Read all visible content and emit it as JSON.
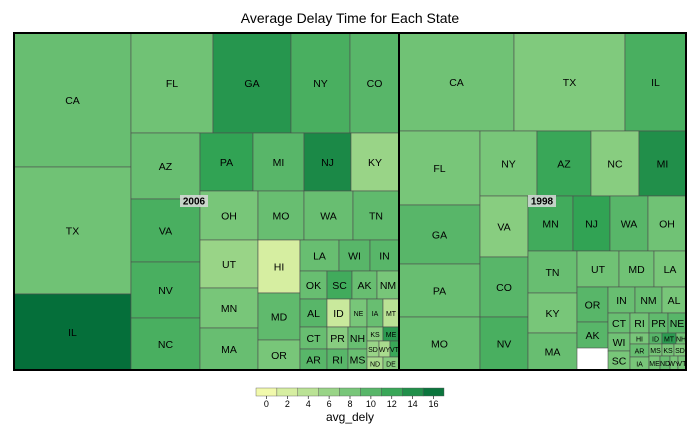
{
  "chart_data": {
    "type": "treemap",
    "title": "Average Delay Time for Each State",
    "color_variable": "avg_dely",
    "colorbar": {
      "ticks": [
        0,
        2,
        4,
        6,
        8,
        10,
        12,
        14,
        16
      ],
      "range": [
        -1,
        17
      ],
      "stops": [
        "#ffffb2",
        "#c2e699",
        "#78c679",
        "#31a354",
        "#006837"
      ]
    },
    "groups": [
      {
        "name": "2006",
        "cells": [
          {
            "label": "CA",
            "value": 9
          },
          {
            "label": "TX",
            "value": 8.5
          },
          {
            "label": "IL",
            "value": 16.5
          },
          {
            "label": "FL",
            "value": 8.5
          },
          {
            "label": "GA",
            "value": 13.5
          },
          {
            "label": "NY",
            "value": 11
          },
          {
            "label": "CO",
            "value": 10
          },
          {
            "label": "AZ",
            "value": 9
          },
          {
            "label": "PA",
            "value": 12.5
          },
          {
            "label": "MI",
            "value": 10
          },
          {
            "label": "NJ",
            "value": 14.5
          },
          {
            "label": "KY",
            "value": 6
          },
          {
            "label": "VA",
            "value": 11
          },
          {
            "label": "NV",
            "value": 11
          },
          {
            "label": "NC",
            "value": 11
          },
          {
            "label": "OH",
            "value": 8
          },
          {
            "label": "MO",
            "value": 9
          },
          {
            "label": "WA",
            "value": 9
          },
          {
            "label": "TN",
            "value": 9.5
          },
          {
            "label": "UT",
            "value": 6
          },
          {
            "label": "MN",
            "value": 8
          },
          {
            "label": "MA",
            "value": 9
          },
          {
            "label": "HI",
            "value": 2
          },
          {
            "label": "MD",
            "value": 9.5
          },
          {
            "label": "OR",
            "value": 8
          },
          {
            "label": "LA",
            "value": 9
          },
          {
            "label": "WI",
            "value": 10
          },
          {
            "label": "IN",
            "value": 10
          },
          {
            "label": "OK",
            "value": 9
          },
          {
            "label": "SC",
            "value": 11.5
          },
          {
            "label": "AK",
            "value": 9
          },
          {
            "label": "NM",
            "value": 8
          },
          {
            "label": "AL",
            "value": 10
          },
          {
            "label": "ID",
            "value": 3
          },
          {
            "label": "NE",
            "value": 8
          },
          {
            "label": "IA",
            "value": 9
          },
          {
            "label": "MT",
            "value": 4
          },
          {
            "label": "CT",
            "value": 9
          },
          {
            "label": "PR",
            "value": 7
          },
          {
            "label": "NH",
            "value": 9
          },
          {
            "label": "KS",
            "value": 7
          },
          {
            "label": "ME",
            "value": 13
          },
          {
            "label": "AR",
            "value": 10
          },
          {
            "label": "RI",
            "value": 10
          },
          {
            "label": "MS",
            "value": 9
          },
          {
            "label": "SD",
            "value": 6
          },
          {
            "label": "WY",
            "value": 5
          },
          {
            "label": "VT",
            "value": 12
          },
          {
            "label": "ND",
            "value": 5
          },
          {
            "label": "DE",
            "value": 7
          }
        ]
      },
      {
        "name": "1998",
        "cells": [
          {
            "label": "CA",
            "value": 8.5
          },
          {
            "label": "TX",
            "value": 7.5
          },
          {
            "label": "IL",
            "value": 11
          },
          {
            "label": "FL",
            "value": 8
          },
          {
            "label": "NY",
            "value": 8
          },
          {
            "label": "AZ",
            "value": 12
          },
          {
            "label": "NC",
            "value": 7
          },
          {
            "label": "MI",
            "value": 14
          },
          {
            "label": "GA",
            "value": 10
          },
          {
            "label": "VA",
            "value": 7
          },
          {
            "label": "MN",
            "value": 11.5
          },
          {
            "label": "NJ",
            "value": 12.5
          },
          {
            "label": "WA",
            "value": 10
          },
          {
            "label": "OH",
            "value": 8.5
          },
          {
            "label": "PA",
            "value": 9
          },
          {
            "label": "CO",
            "value": 10
          },
          {
            "label": "TN",
            "value": 9
          },
          {
            "label": "UT",
            "value": 8.5
          },
          {
            "label": "MD",
            "value": 8.5
          },
          {
            "label": "LA",
            "value": 8
          },
          {
            "label": "MO",
            "value": 9
          },
          {
            "label": "NV",
            "value": 11
          },
          {
            "label": "KY",
            "value": 8
          },
          {
            "label": "MA",
            "value": 9
          },
          {
            "label": "OR",
            "value": 10
          },
          {
            "label": "IN",
            "value": 9
          },
          {
            "label": "NM",
            "value": 9
          },
          {
            "label": "AL",
            "value": 8
          },
          {
            "label": "AK",
            "value": 10
          },
          {
            "label": "CT",
            "value": 9
          },
          {
            "label": "RI",
            "value": 8.5
          },
          {
            "label": "PR",
            "value": 9.5
          },
          {
            "label": "NE",
            "value": 10
          },
          {
            "label": "WI",
            "value": 8.5
          },
          {
            "label": "HI",
            "value": 8
          },
          {
            "label": "ID",
            "value": 10
          },
          {
            "label": "MT",
            "value": 13
          },
          {
            "label": "NH",
            "value": 8.5
          },
          {
            "label": "SC",
            "value": 8
          },
          {
            "label": "AR",
            "value": 9
          },
          {
            "label": "MS",
            "value": 8
          },
          {
            "label": "KS",
            "value": 8
          },
          {
            "label": "SD",
            "value": 7.5
          },
          {
            "label": "IA",
            "value": 8
          },
          {
            "label": "ME",
            "value": 8
          },
          {
            "label": "ND",
            "value": 9
          },
          {
            "label": "WY",
            "value": 8
          },
          {
            "label": "VT",
            "value": 8
          }
        ]
      }
    ]
  }
}
